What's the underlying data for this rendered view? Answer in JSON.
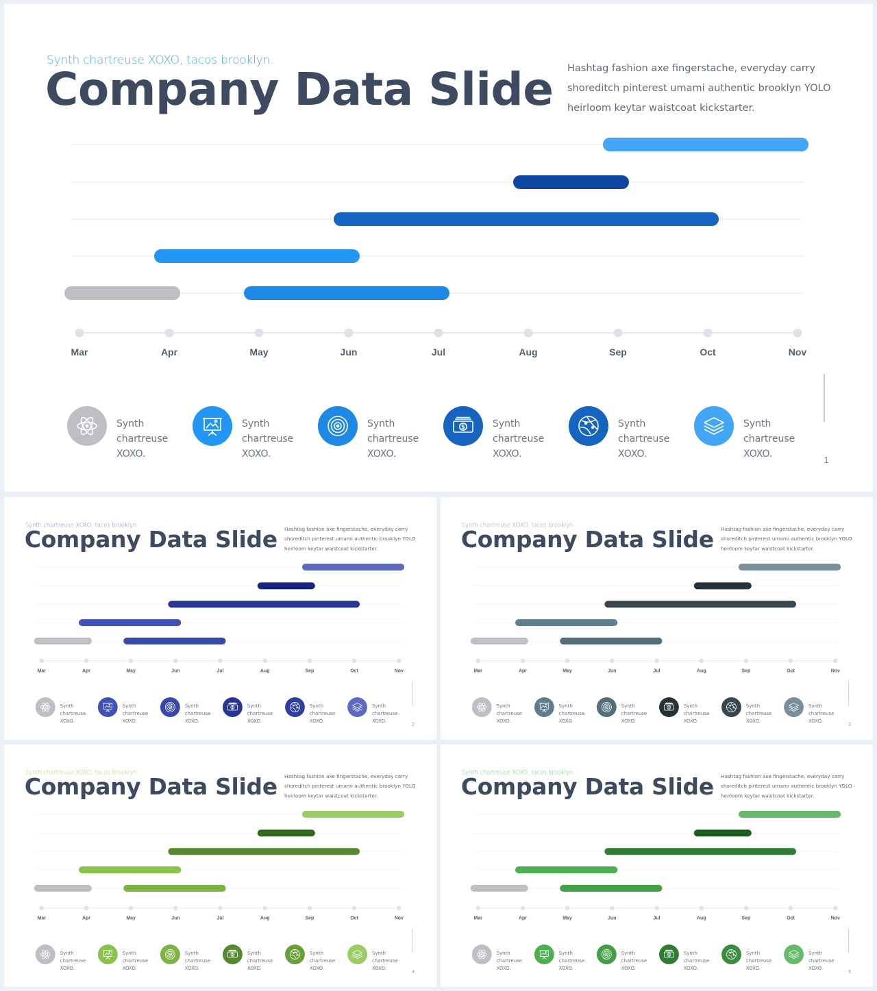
{
  "subtitle": "Synth chartreuse XOXO, tacos brooklyn.",
  "title": "Company Data Slide",
  "description": "Hashtag fashion axe fingerstache, everyday carry shoreditch pinterest umami authentic brooklyn YOLO heirloom keytar waistcoat kickstarter.",
  "legend_label": "Synth chartreuse XOXO.",
  "icons": [
    "atom-icon",
    "presentation-board-icon",
    "target-icon",
    "money-icon",
    "globe-icon",
    "layers-icon"
  ],
  "chart_data": {
    "type": "gantt",
    "months": [
      "Mar",
      "Apr",
      "May",
      "Jun",
      "Jul",
      "Aug",
      "Sep",
      "Oct",
      "Nov"
    ],
    "bars": [
      {
        "row": 0,
        "start": 6,
        "end": 8
      },
      {
        "row": 1,
        "start": 5,
        "end": 6
      },
      {
        "row": 2,
        "start": 3,
        "end": 7
      },
      {
        "row": 3,
        "start": 1,
        "end": 3
      },
      {
        "row": 4,
        "start": 0,
        "end": 1
      },
      {
        "row": 4,
        "start": 2,
        "end": 4
      }
    ]
  },
  "slides": [
    {
      "page": "1",
      "subtitle_color": "#4ea9e4",
      "bar_colors": [
        "#42a5f5",
        "#0d47a1",
        "#1565c0",
        "#2196f3",
        "#bdbfc4",
        "#1e88e5"
      ],
      "icon_colors": [
        "#bdbfc4",
        "#2196f3",
        "#1e88e5",
        "#1565c0",
        "#1565c0",
        "#42a5f5"
      ]
    },
    {
      "page": "2",
      "subtitle_color": "#7c84c8",
      "bar_colors": [
        "#5c6bc0",
        "#1a237e",
        "#283593",
        "#3f51b5",
        "#bdbfc4",
        "#3949ab"
      ],
      "icon_colors": [
        "#bdbfc4",
        "#3f51b5",
        "#3949ab",
        "#283593",
        "#303f9f",
        "#5c6bc0"
      ]
    },
    {
      "page": "3",
      "subtitle_color": "#8a9aa6",
      "bar_colors": [
        "#78909c",
        "#263238",
        "#37474f",
        "#607d8b",
        "#bdbfc4",
        "#546e7a"
      ],
      "icon_colors": [
        "#bdbfc4",
        "#607d8b",
        "#546e7a",
        "#263238",
        "#37474f",
        "#78909c"
      ]
    },
    {
      "page": "4",
      "subtitle_color": "#a6cf6a",
      "bar_colors": [
        "#9ccc65",
        "#33691e",
        "#558b2f",
        "#8bc34a",
        "#bdbfc4",
        "#7cb342"
      ],
      "icon_colors": [
        "#bdbfc4",
        "#8bc34a",
        "#7cb342",
        "#558b2f",
        "#689f38",
        "#9ccc65"
      ]
    },
    {
      "page": "5",
      "subtitle_color": "#6cc070",
      "bar_colors": [
        "#66bb6a",
        "#1b5e20",
        "#2e7d32",
        "#4caf50",
        "#bdbfc4",
        "#43a047"
      ],
      "icon_colors": [
        "#bdbfc4",
        "#4caf50",
        "#43a047",
        "#2e7d32",
        "#388e3c",
        "#66bb6a"
      ]
    }
  ]
}
